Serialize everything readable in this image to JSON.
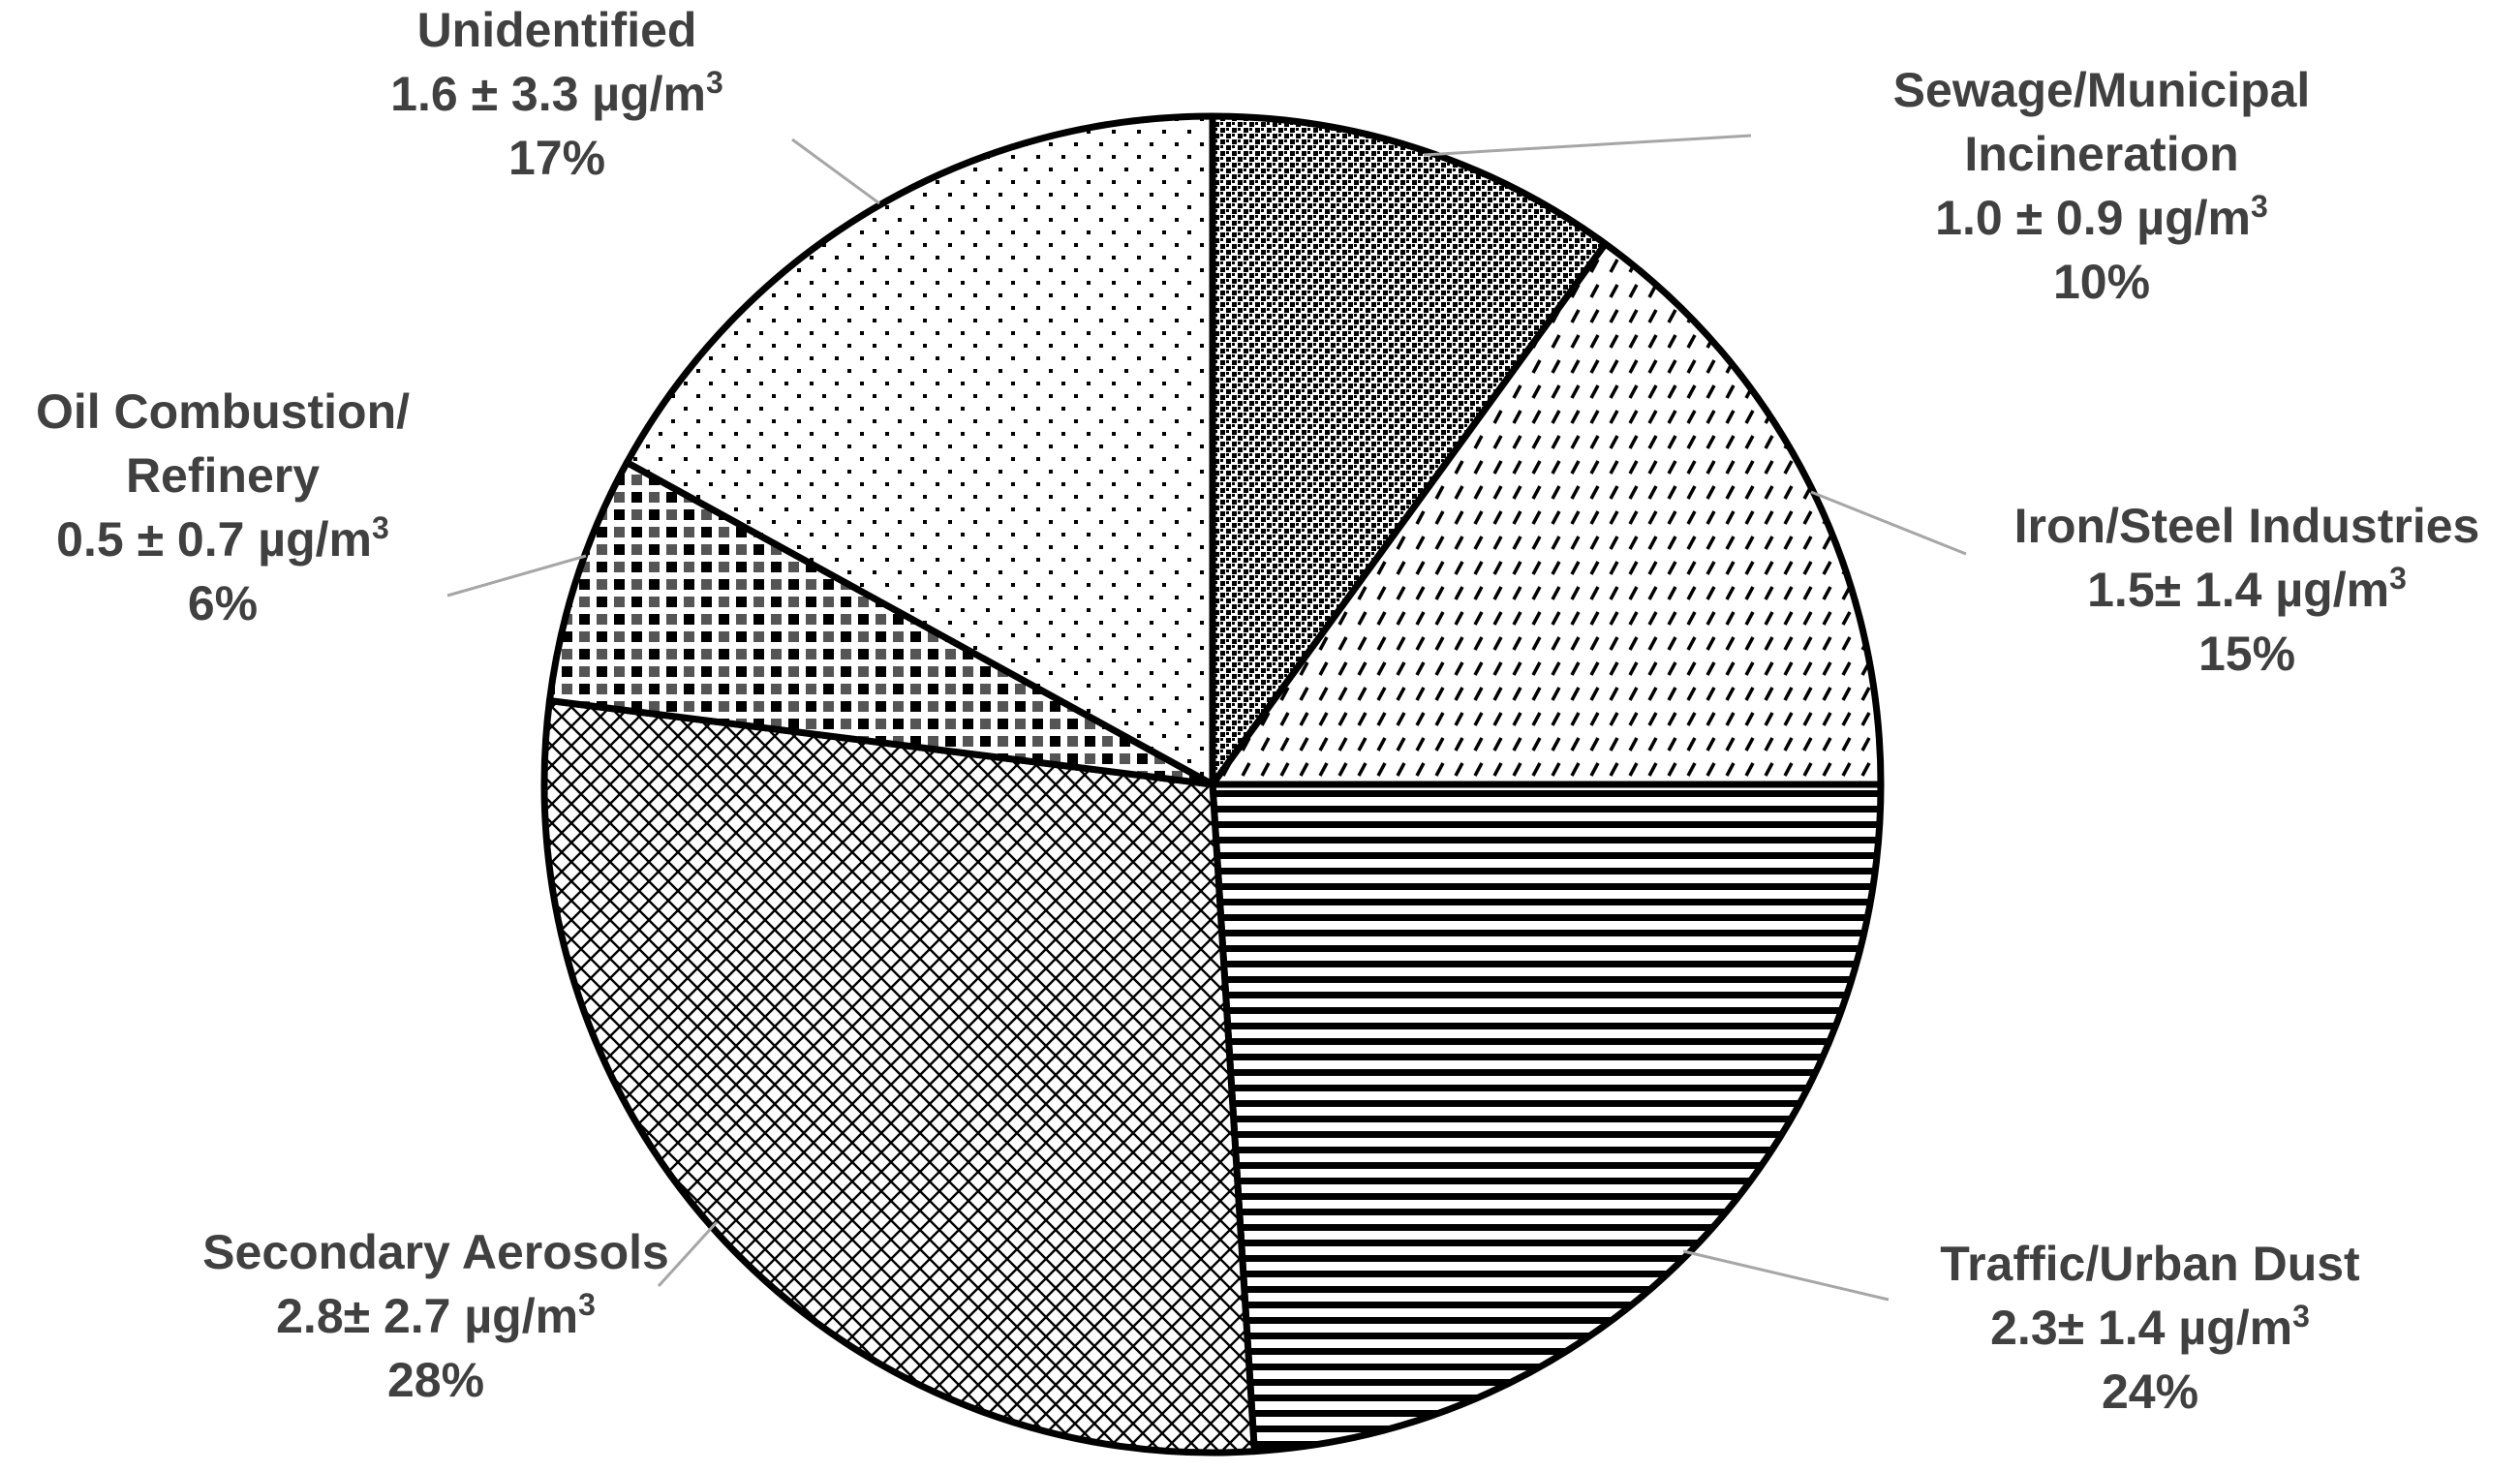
{
  "chart_data": {
    "type": "pie",
    "title": "",
    "start_angle_deg": 0,
    "direction": "clockwise",
    "slices": [
      {
        "label": [
          "Sewage/Municipal",
          "Incineration"
        ],
        "value_text": "1.0 ± 0.9 µg/m",
        "percent_text": "10%",
        "percent": 10,
        "pattern": "dense-dots"
      },
      {
        "label": [
          "Iron/Steel Industries"
        ],
        "value_text": "1.5± 1.4 µg/m",
        "percent_text": "15%",
        "percent": 15,
        "pattern": "diagonal-dashes"
      },
      {
        "label": [
          "Traffic/Urban Dust"
        ],
        "value_text": "2.3± 1.4 µg/m",
        "percent_text": "24%",
        "percent": 24,
        "pattern": "horizontal-stripes"
      },
      {
        "label": [
          "Secondary Aerosols"
        ],
        "value_text": "2.8± 2.7 µg/m",
        "percent_text": "28%",
        "percent": 28,
        "pattern": "diamond-grid"
      },
      {
        "label": [
          "Oil Combustion/",
          "Refinery"
        ],
        "value_text": "0.5 ± 0.7 µg/m",
        "percent_text": "6%",
        "percent": 6,
        "pattern": "checker"
      },
      {
        "label": [
          "Unidentified"
        ],
        "value_text": "1.6 ± 3.3 µg/m",
        "percent_text": "17%",
        "percent": 17,
        "pattern": "sparse-dots"
      }
    ],
    "unit_superscript": "3"
  }
}
